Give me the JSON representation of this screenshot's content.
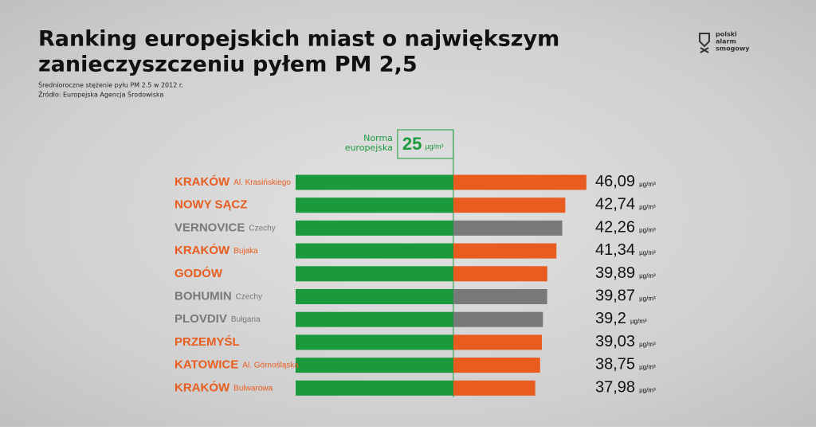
{
  "chart_data": {
    "type": "bar",
    "title": [
      "Ranking europejskich miast o największym",
      "zanieczyszczeniu pyłem PM 2,5"
    ],
    "subtitle": "Średnioroczne stężenie pyłu PM 2.5 w 2012 r.",
    "source": "Źródło: Europejska Agencja Środowiska",
    "logo": [
      "polski",
      "alarm",
      "smogowy"
    ],
    "threshold": {
      "value": 25,
      "label": [
        "Norma",
        "europejska"
      ],
      "color": "#1a9a3c"
    },
    "unit": "µg/m³",
    "categories": [
      "KRAKÓW",
      "NOWY SĄCZ",
      "VERNOVICE",
      "KRAKÓW",
      "GODÓW",
      "BOHUMIN",
      "PLOVDIV",
      "PRZEMYŚL",
      "KATOWICE",
      "KRAKÓW"
    ],
    "details": [
      "Al. Krasińskiego",
      null,
      "Czechy",
      "Bujaka",
      null,
      "Czechy",
      "Bułgaria",
      null,
      "Al. Górnośląska",
      "Bulwarowa"
    ],
    "values": [
      46.09,
      42.74,
      42.26,
      41.34,
      39.89,
      39.87,
      39.2,
      39.03,
      38.75,
      37.98
    ],
    "value_labels": [
      "46,09",
      "42,74",
      "42,26",
      "41,34",
      "39,89",
      "39,87",
      "39,2",
      "39,03",
      "38,75",
      "37,98"
    ],
    "colors": [
      "#e85d1f",
      "#e85d1f",
      "#777a77",
      "#e85d1f",
      "#e85d1f",
      "#777a77",
      "#777a77",
      "#e85d1f",
      "#e85d1f",
      "#e85d1f"
    ],
    "xlim": [
      0,
      48
    ]
  }
}
